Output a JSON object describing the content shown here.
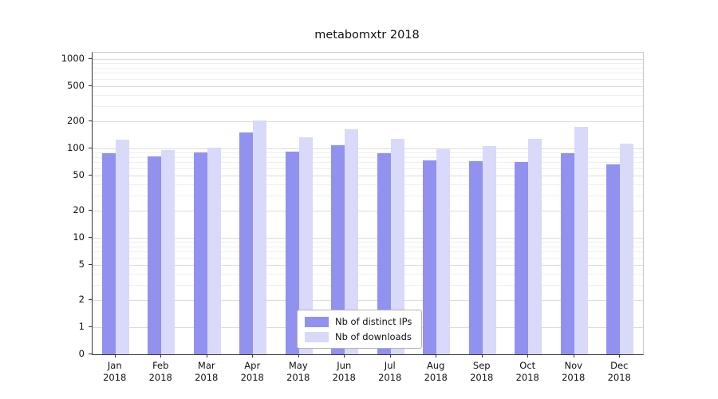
{
  "chart_data": {
    "type": "bar",
    "title": "metabomxtr 2018",
    "categories": [
      "Jan",
      "Feb",
      "Mar",
      "Apr",
      "May",
      "Jun",
      "Jul",
      "Aug",
      "Sep",
      "Oct",
      "Nov",
      "Dec"
    ],
    "year_label": "2018",
    "series": [
      {
        "name": "Nb of distinct IPs",
        "color": "#9191ef",
        "values": [
          88,
          82,
          91,
          150,
          93,
          108,
          89,
          74,
          72,
          70,
          88,
          66
        ]
      },
      {
        "name": "Nb of downloads",
        "color": "#d9d9f9",
        "values": [
          125,
          96,
          103,
          205,
          132,
          165,
          128,
          100,
          106,
          128,
          175,
          112
        ]
      }
    ],
    "yticks": [
      0,
      1,
      2,
      5,
      10,
      20,
      50,
      100,
      200,
      500,
      1000
    ],
    "yscale": "log",
    "ylim": [
      0,
      1000
    ],
    "grid": true,
    "legend_position": "lower center"
  }
}
